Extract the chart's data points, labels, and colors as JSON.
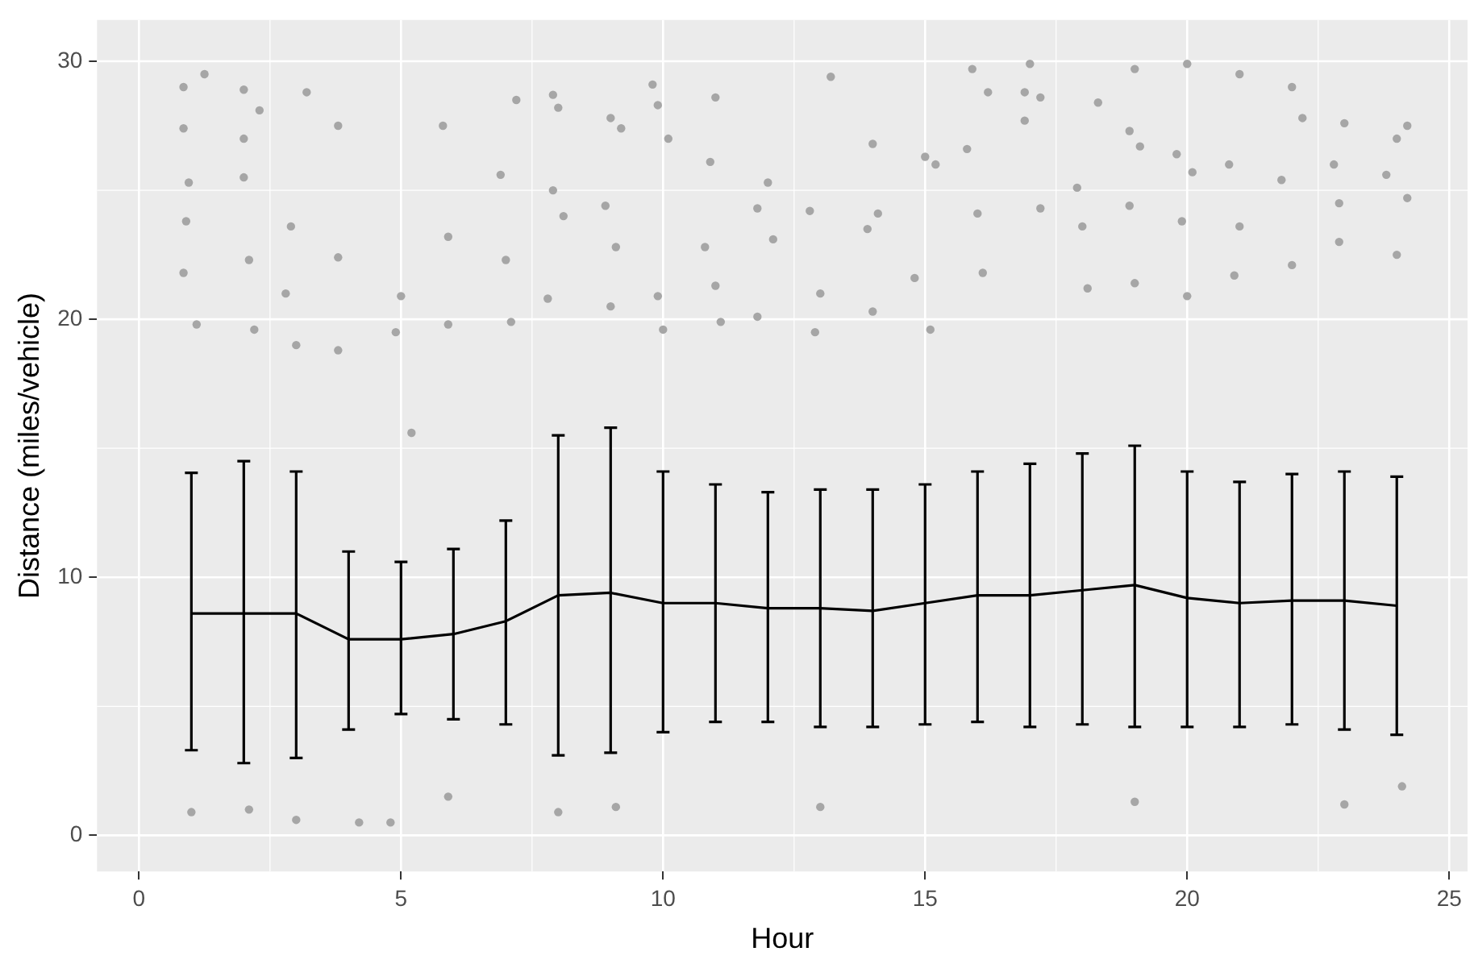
{
  "chart_data": {
    "type": "scatter",
    "xlabel": "Hour",
    "ylabel": "Distance (miles/vehicle)",
    "xlim": [
      -0.8,
      25.35
    ],
    "xticks": [
      0,
      5,
      10,
      15,
      20,
      25
    ],
    "ylim": [
      -1.4,
      31.6
    ],
    "yticks": [
      0,
      10,
      20,
      30
    ],
    "grid": true,
    "legend": false,
    "marker": "circle",
    "series": [
      {
        "color": "#a6a6a6",
        "x": [
          1.25,
          0.85,
          0.85,
          0.95,
          0.9,
          0.85,
          1.1,
          2.0,
          2.3,
          2.0,
          2.0,
          2.1,
          2.2,
          3.2,
          2.9,
          2.8,
          3.0,
          3.8,
          3.8,
          3.8,
          4.2,
          5.0,
          4.9,
          5.2,
          4.8,
          5.8,
          5.9,
          5.9,
          7.2,
          6.9,
          7.0,
          7.1,
          7.9,
          8.0,
          7.9,
          8.1,
          7.8,
          9.0,
          9.2,
          8.9,
          9.1,
          9.0,
          9.8,
          9.9,
          10.1,
          9.9,
          10.0,
          11.0,
          10.9,
          10.8,
          11.0,
          11.1,
          12.0,
          11.8,
          12.1,
          11.8,
          13.2,
          12.8,
          13.0,
          12.9,
          14.0,
          14.1,
          13.9,
          14.0,
          15.0,
          15.2,
          14.8,
          15.1,
          15.9,
          16.2,
          15.8,
          16.0,
          16.1,
          17.0,
          16.9,
          17.2,
          16.9,
          17.2,
          18.3,
          17.9,
          18.0,
          18.1,
          19.0,
          18.9,
          19.1,
          18.9,
          19.0,
          20.0,
          19.8,
          20.1,
          19.9,
          20.0,
          21.0,
          20.8,
          21.0,
          20.9,
          22.0,
          21.8,
          22.2,
          22.0,
          23.0,
          22.8,
          22.9,
          22.9,
          24.2,
          24.0,
          23.8,
          24.2,
          24.0,
          1.0,
          2.1,
          3.0,
          5.9,
          8.0,
          9.1,
          13.0,
          19.0,
          23.0,
          24.1
        ],
        "values": [
          29.5,
          29.0,
          27.4,
          25.3,
          23.8,
          21.8,
          19.8,
          28.9,
          28.1,
          27.0,
          25.5,
          22.3,
          19.6,
          28.8,
          23.6,
          21.0,
          19.0,
          27.5,
          22.4,
          18.8,
          0.5,
          20.9,
          19.5,
          15.6,
          0.5,
          27.5,
          23.2,
          19.8,
          28.5,
          25.6,
          22.3,
          19.9,
          28.7,
          28.2,
          25.0,
          24.0,
          20.8,
          27.8,
          27.4,
          24.4,
          22.8,
          20.5,
          29.1,
          28.3,
          27.0,
          20.9,
          19.6,
          28.6,
          26.1,
          22.8,
          21.3,
          19.9,
          25.3,
          24.3,
          23.1,
          20.1,
          29.4,
          24.2,
          21.0,
          19.5,
          26.8,
          24.1,
          23.5,
          20.3,
          26.3,
          26.0,
          21.6,
          19.6,
          29.7,
          28.8,
          26.6,
          24.1,
          21.8,
          29.9,
          28.8,
          28.6,
          27.7,
          24.3,
          28.4,
          25.1,
          23.6,
          21.2,
          29.7,
          27.3,
          26.7,
          24.4,
          21.4,
          29.9,
          26.4,
          25.7,
          23.8,
          20.9,
          29.5,
          26.0,
          23.6,
          21.7,
          29.0,
          25.4,
          27.8,
          22.1,
          27.6,
          26.0,
          24.5,
          23.0,
          27.5,
          27.0,
          25.6,
          24.7,
          22.5,
          0.9,
          1.0,
          0.6,
          1.5,
          0.9,
          1.1,
          1.1,
          1.3,
          1.2,
          1.9
        ]
      },
      {
        "type": "line",
        "color": "#000000",
        "marker": "none",
        "x": [
          1,
          2,
          3,
          4,
          5,
          6,
          7,
          8,
          9,
          10,
          11,
          12,
          13,
          14,
          15,
          16,
          17,
          18,
          19,
          20,
          21,
          22,
          23,
          24
        ],
        "values": [
          8.6,
          8.6,
          8.6,
          7.6,
          7.6,
          7.8,
          8.3,
          9.3,
          9.4,
          9.0,
          9.0,
          8.8,
          8.8,
          8.7,
          9.0,
          9.3,
          9.3,
          9.5,
          9.7,
          9.2,
          9.0,
          9.1,
          9.1,
          8.9
        ],
        "errors": [
          [
            3.3,
            14.05
          ],
          [
            2.8,
            14.5
          ],
          [
            3.0,
            14.1
          ],
          [
            4.1,
            11.0
          ],
          [
            4.7,
            10.6
          ],
          [
            4.5,
            11.1
          ],
          [
            4.3,
            12.2
          ],
          [
            3.1,
            15.5
          ],
          [
            3.2,
            15.8
          ],
          [
            4.0,
            14.1
          ],
          [
            4.4,
            13.6
          ],
          [
            4.4,
            13.3
          ],
          [
            4.2,
            13.4
          ],
          [
            4.2,
            13.4
          ],
          [
            4.3,
            13.6
          ],
          [
            4.4,
            14.1
          ],
          [
            4.2,
            14.4
          ],
          [
            4.3,
            14.8
          ],
          [
            4.2,
            15.1
          ],
          [
            4.2,
            14.1
          ],
          [
            4.2,
            13.7
          ],
          [
            4.3,
            14.0
          ],
          [
            4.1,
            14.1
          ],
          [
            3.9,
            13.9
          ]
        ]
      }
    ]
  }
}
